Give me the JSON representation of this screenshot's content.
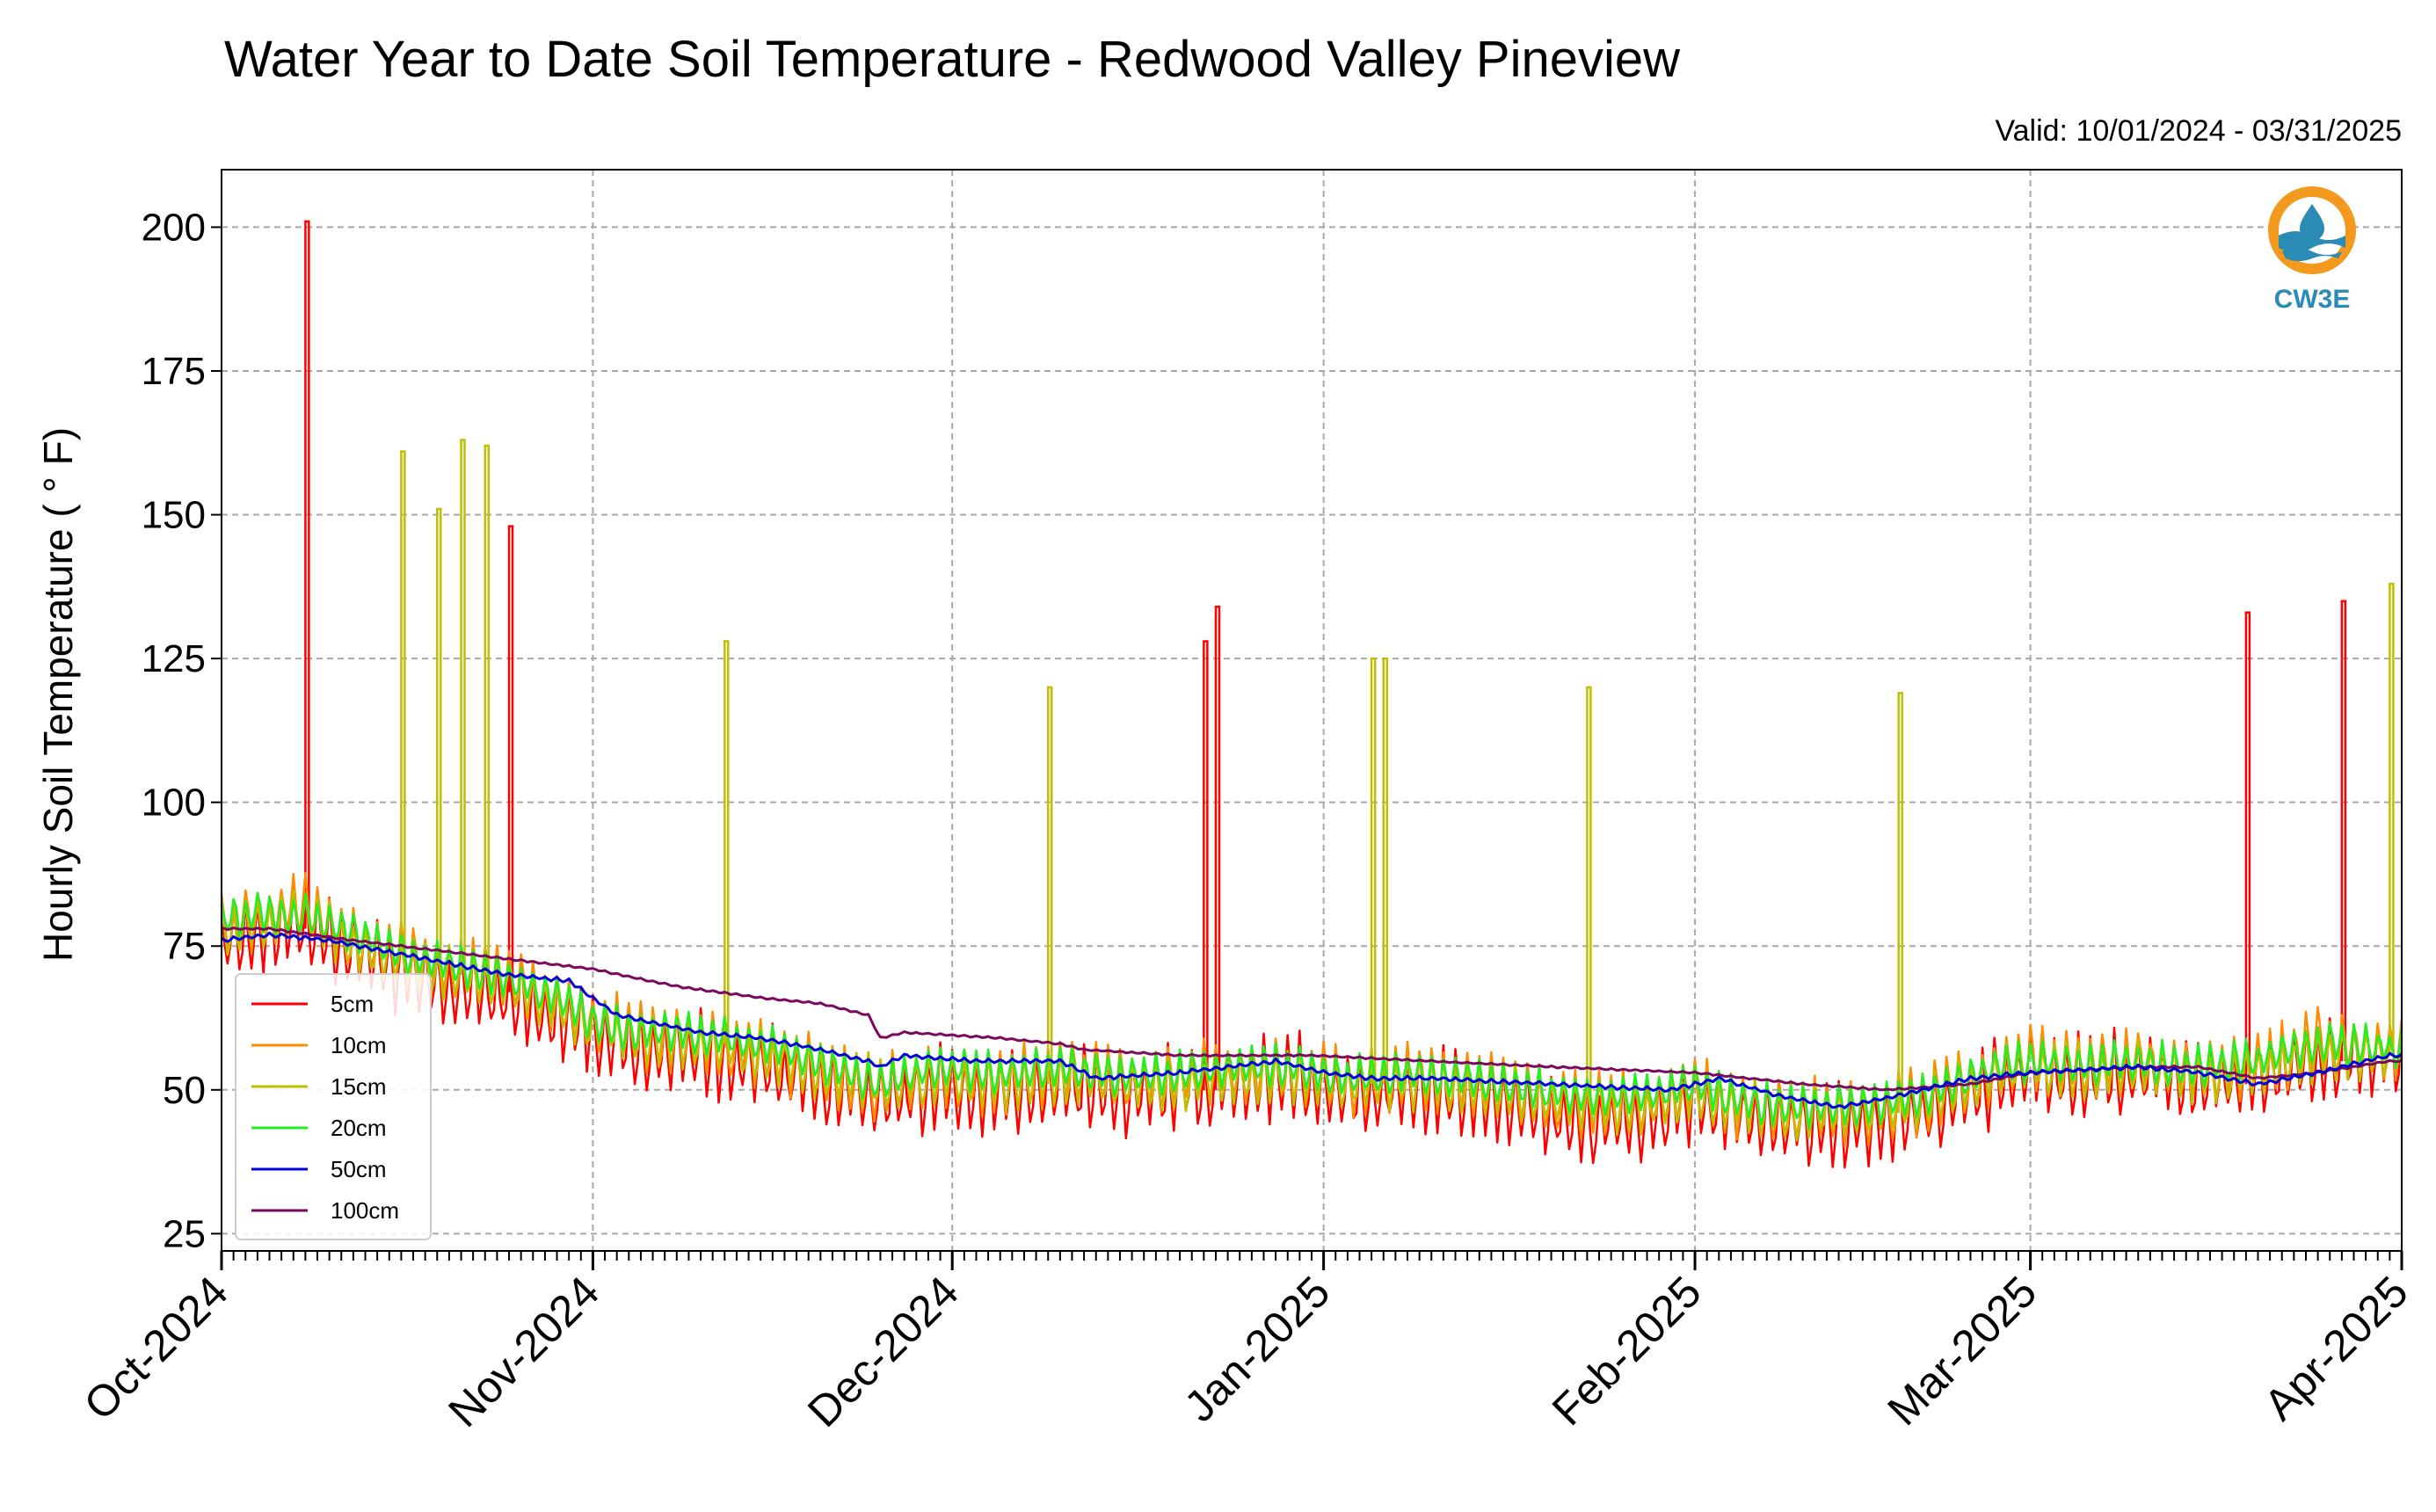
{
  "chart_data": {
    "type": "line",
    "title": "Water Year to Date Soil Temperature - Redwood Valley Pineview",
    "valid_text": "Valid: 10/01/2024 - 03/31/2025",
    "ylabel": "Hourly Soil Temperature ( ° F)",
    "xlabel": "",
    "x_range": [
      "2024-10-01",
      "2025-04-01"
    ],
    "ylim": [
      22,
      210
    ],
    "yticks": [
      25,
      50,
      75,
      100,
      125,
      150,
      175,
      200
    ],
    "xticks": [
      {
        "date": "2024-10-01",
        "label": "Oct-2024"
      },
      {
        "date": "2024-11-01",
        "label": "Nov-2024"
      },
      {
        "date": "2024-12-01",
        "label": "Dec-2024"
      },
      {
        "date": "2025-01-01",
        "label": "Jan-2025"
      },
      {
        "date": "2025-02-01",
        "label": "Feb-2025"
      },
      {
        "date": "2025-03-01",
        "label": "Mar-2025"
      },
      {
        "date": "2025-04-01",
        "label": "Apr-2025"
      }
    ],
    "grid": true,
    "legend_position": "lower-left",
    "series": [
      {
        "name": "5cm",
        "color": "#ff0000",
        "points": [
          [
            "2024-10-01",
            76
          ],
          [
            "2024-10-05",
            78
          ],
          [
            "2024-10-08",
            79
          ],
          [
            "2024-10-12",
            74
          ],
          [
            "2024-10-16",
            70
          ],
          [
            "2024-10-20",
            68
          ],
          [
            "2024-10-24",
            67
          ],
          [
            "2024-10-28",
            63
          ],
          [
            "2024-11-01",
            60
          ],
          [
            "2024-11-05",
            57
          ],
          [
            "2024-11-10",
            56
          ],
          [
            "2024-11-15",
            54
          ],
          [
            "2024-11-20",
            51
          ],
          [
            "2024-11-25",
            48
          ],
          [
            "2024-11-30",
            50
          ],
          [
            "2024-12-05",
            49
          ],
          [
            "2024-12-10",
            51
          ],
          [
            "2024-12-15",
            49
          ],
          [
            "2024-12-20",
            50
          ],
          [
            "2024-12-25",
            51
          ],
          [
            "2024-12-30",
            52
          ],
          [
            "2025-01-03",
            49
          ],
          [
            "2025-01-08",
            50
          ],
          [
            "2025-01-13",
            49
          ],
          [
            "2025-01-18",
            47
          ],
          [
            "2025-01-23",
            44
          ],
          [
            "2025-01-28",
            45
          ],
          [
            "2025-02-01",
            48
          ],
          [
            "2025-02-05",
            45
          ],
          [
            "2025-02-10",
            44
          ],
          [
            "2025-02-15",
            44
          ],
          [
            "2025-02-20",
            46
          ],
          [
            "2025-02-25",
            50
          ],
          [
            "2025-03-01",
            53
          ],
          [
            "2025-03-05",
            52
          ],
          [
            "2025-03-10",
            53
          ],
          [
            "2025-03-15",
            51
          ],
          [
            "2025-03-20",
            52
          ],
          [
            "2025-03-25",
            55
          ],
          [
            "2025-03-31",
            56
          ]
        ],
        "spikes": [
          [
            "2024-10-08",
            201
          ],
          [
            "2024-10-25",
            148
          ],
          [
            "2024-12-22",
            128
          ],
          [
            "2024-12-23",
            134
          ],
          [
            "2025-03-19",
            133
          ],
          [
            "2025-03-27",
            135
          ]
        ]
      },
      {
        "name": "10cm",
        "color": "#ff8c00",
        "points": [
          [
            "2024-10-01",
            78
          ],
          [
            "2024-10-05",
            80
          ],
          [
            "2024-10-08",
            82
          ],
          [
            "2024-10-12",
            76
          ],
          [
            "2024-10-16",
            73
          ],
          [
            "2024-10-20",
            71
          ],
          [
            "2024-10-24",
            70
          ],
          [
            "2024-10-28",
            66
          ],
          [
            "2024-11-01",
            62
          ],
          [
            "2024-11-05",
            59
          ],
          [
            "2024-11-10",
            58
          ],
          [
            "2024-11-15",
            56
          ],
          [
            "2024-11-20",
            53
          ],
          [
            "2024-11-25",
            50
          ],
          [
            "2024-11-30",
            52
          ],
          [
            "2024-12-05",
            51
          ],
          [
            "2024-12-10",
            53
          ],
          [
            "2024-12-15",
            51
          ],
          [
            "2024-12-20",
            52
          ],
          [
            "2024-12-25",
            53
          ],
          [
            "2024-12-30",
            53
          ],
          [
            "2025-01-03",
            51
          ],
          [
            "2025-01-08",
            52
          ],
          [
            "2025-01-13",
            51
          ],
          [
            "2025-01-18",
            49
          ],
          [
            "2025-01-23",
            47
          ],
          [
            "2025-01-28",
            48
          ],
          [
            "2025-02-01",
            50
          ],
          [
            "2025-02-05",
            47
          ],
          [
            "2025-02-10",
            46
          ],
          [
            "2025-02-15",
            46
          ],
          [
            "2025-02-20",
            48
          ],
          [
            "2025-02-25",
            52
          ],
          [
            "2025-03-01",
            55
          ],
          [
            "2025-03-05",
            54
          ],
          [
            "2025-03-10",
            55
          ],
          [
            "2025-03-15",
            53
          ],
          [
            "2025-03-20",
            54
          ],
          [
            "2025-03-25",
            58
          ],
          [
            "2025-03-31",
            57
          ]
        ],
        "spikes": []
      },
      {
        "name": "15cm",
        "color": "#bfbf00",
        "points": [
          [
            "2024-10-01",
            77
          ],
          [
            "2024-10-05",
            79
          ],
          [
            "2024-10-08",
            80
          ],
          [
            "2024-10-12",
            75
          ],
          [
            "2024-10-16",
            72
          ],
          [
            "2024-10-20",
            70
          ],
          [
            "2024-10-24",
            69
          ],
          [
            "2024-10-28",
            65
          ],
          [
            "2024-11-01",
            61
          ],
          [
            "2024-11-05",
            59
          ],
          [
            "2024-11-10",
            58
          ],
          [
            "2024-11-15",
            56
          ],
          [
            "2024-11-20",
            53
          ],
          [
            "2024-11-25",
            51
          ],
          [
            "2024-11-30",
            52
          ],
          [
            "2024-12-05",
            51
          ],
          [
            "2024-12-10",
            52
          ],
          [
            "2024-12-15",
            51
          ],
          [
            "2024-12-20",
            51
          ],
          [
            "2024-12-25",
            52
          ],
          [
            "2024-12-30",
            52
          ],
          [
            "2025-01-03",
            51
          ],
          [
            "2025-01-08",
            51
          ],
          [
            "2025-01-13",
            50
          ],
          [
            "2025-01-18",
            49
          ],
          [
            "2025-01-23",
            47
          ],
          [
            "2025-01-28",
            47
          ],
          [
            "2025-02-01",
            49
          ],
          [
            "2025-02-05",
            47
          ],
          [
            "2025-02-10",
            46
          ],
          [
            "2025-02-15",
            46
          ],
          [
            "2025-02-20",
            48
          ],
          [
            "2025-02-25",
            52
          ],
          [
            "2025-03-01",
            54
          ],
          [
            "2025-03-05",
            53
          ],
          [
            "2025-03-10",
            54
          ],
          [
            "2025-03-15",
            52
          ],
          [
            "2025-03-20",
            53
          ],
          [
            "2025-03-25",
            56
          ],
          [
            "2025-03-31",
            56
          ]
        ],
        "spikes": [
          [
            "2024-10-16",
            161
          ],
          [
            "2024-10-19",
            151
          ],
          [
            "2024-10-21",
            163
          ],
          [
            "2024-10-23",
            162
          ],
          [
            "2024-11-12",
            128
          ],
          [
            "2024-12-09",
            120
          ],
          [
            "2025-01-05",
            125
          ],
          [
            "2025-01-06",
            125
          ],
          [
            "2025-01-23",
            120
          ],
          [
            "2025-02-18",
            119
          ],
          [
            "2025-03-31",
            138
          ]
        ]
      },
      {
        "name": "20cm",
        "color": "#22ee22",
        "points": [
          [
            "2024-10-01",
            80
          ],
          [
            "2024-10-05",
            81
          ],
          [
            "2024-10-08",
            80
          ],
          [
            "2024-10-12",
            77
          ],
          [
            "2024-10-16",
            74
          ],
          [
            "2024-10-20",
            72
          ],
          [
            "2024-10-24",
            70
          ],
          [
            "2024-10-28",
            67
          ],
          [
            "2024-11-01",
            62
          ],
          [
            "2024-11-05",
            60
          ],
          [
            "2024-11-10",
            60
          ],
          [
            "2024-11-15",
            58
          ],
          [
            "2024-11-20",
            55
          ],
          [
            "2024-11-25",
            51
          ],
          [
            "2024-11-30",
            54
          ],
          [
            "2024-12-05",
            53
          ],
          [
            "2024-12-10",
            54
          ],
          [
            "2024-12-15",
            52
          ],
          [
            "2024-12-20",
            53
          ],
          [
            "2024-12-25",
            54
          ],
          [
            "2024-12-30",
            54
          ],
          [
            "2025-01-03",
            52
          ],
          [
            "2025-01-08",
            53
          ],
          [
            "2025-01-13",
            52
          ],
          [
            "2025-01-18",
            50
          ],
          [
            "2025-01-23",
            49
          ],
          [
            "2025-01-28",
            49
          ],
          [
            "2025-02-01",
            51
          ],
          [
            "2025-02-05",
            48
          ],
          [
            "2025-02-10",
            47
          ],
          [
            "2025-02-15",
            47
          ],
          [
            "2025-02-20",
            49
          ],
          [
            "2025-02-25",
            53
          ],
          [
            "2025-03-01",
            55
          ],
          [
            "2025-03-05",
            54
          ],
          [
            "2025-03-10",
            55
          ],
          [
            "2025-03-15",
            54
          ],
          [
            "2025-03-20",
            55
          ],
          [
            "2025-03-25",
            58
          ],
          [
            "2025-03-31",
            57
          ]
        ],
        "spikes": []
      },
      {
        "name": "50cm",
        "color": "#0000dd",
        "points": [
          [
            "2024-10-01",
            76
          ],
          [
            "2024-10-05",
            77
          ],
          [
            "2024-10-10",
            76
          ],
          [
            "2024-10-15",
            74
          ],
          [
            "2024-10-20",
            72
          ],
          [
            "2024-10-25",
            70
          ],
          [
            "2024-10-30",
            69
          ],
          [
            "2024-11-03",
            63
          ],
          [
            "2024-11-10",
            60
          ],
          [
            "2024-11-15",
            59
          ],
          [
            "2024-11-20",
            57
          ],
          [
            "2024-11-24",
            55
          ],
          [
            "2024-11-25",
            54
          ],
          [
            "2024-11-27",
            56
          ],
          [
            "2024-12-03",
            55
          ],
          [
            "2024-12-10",
            55
          ],
          [
            "2024-12-13",
            52
          ],
          [
            "2024-12-20",
            53
          ],
          [
            "2024-12-28",
            55
          ],
          [
            "2025-01-01",
            53
          ],
          [
            "2025-01-05",
            52
          ],
          [
            "2025-01-10",
            52
          ],
          [
            "2025-01-20",
            51
          ],
          [
            "2025-01-30",
            50
          ],
          [
            "2025-02-03",
            52
          ],
          [
            "2025-02-08",
            49
          ],
          [
            "2025-02-13",
            47
          ],
          [
            "2025-02-18",
            49
          ],
          [
            "2025-02-24",
            52
          ],
          [
            "2025-03-01",
            53
          ],
          [
            "2025-03-10",
            54
          ],
          [
            "2025-03-15",
            53
          ],
          [
            "2025-03-20",
            51
          ],
          [
            "2025-03-25",
            53
          ],
          [
            "2025-03-31",
            56
          ]
        ],
        "spikes": []
      },
      {
        "name": "100cm",
        "color": "#7b0a5e",
        "points": [
          [
            "2024-10-01",
            78
          ],
          [
            "2024-10-05",
            78
          ],
          [
            "2024-10-12",
            76
          ],
          [
            "2024-10-20",
            74
          ],
          [
            "2024-10-28",
            72
          ],
          [
            "2024-11-01",
            71
          ],
          [
            "2024-11-08",
            68
          ],
          [
            "2024-11-15",
            66
          ],
          [
            "2024-11-20",
            65
          ],
          [
            "2024-11-24",
            63
          ],
          [
            "2024-11-25",
            59
          ],
          [
            "2024-11-27",
            60
          ],
          [
            "2024-12-05",
            59
          ],
          [
            "2024-12-10",
            58
          ],
          [
            "2024-12-12",
            57
          ],
          [
            "2024-12-20",
            56
          ],
          [
            "2024-12-31",
            56
          ],
          [
            "2025-01-10",
            55
          ],
          [
            "2025-01-20",
            54
          ],
          [
            "2025-02-01",
            53
          ],
          [
            "2025-02-10",
            51
          ],
          [
            "2025-02-17",
            50
          ],
          [
            "2025-02-24",
            51
          ],
          [
            "2025-03-01",
            53
          ],
          [
            "2025-03-10",
            54
          ],
          [
            "2025-03-15",
            54
          ],
          [
            "2025-03-20",
            52
          ],
          [
            "2025-03-25",
            53
          ],
          [
            "2025-03-31",
            55
          ]
        ],
        "spikes": []
      }
    ],
    "logo_text": "CW3E"
  }
}
